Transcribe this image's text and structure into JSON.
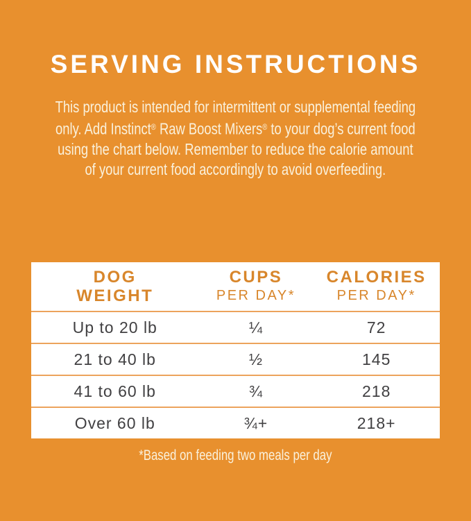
{
  "page": {
    "background_color": "#E8902E",
    "accent_color": "#D8862B",
    "table_text_color": "#414042",
    "cream_text_color": "#FAF1DC"
  },
  "title": "SERVING INSTRUCTIONS",
  "intro": {
    "line1": "This product is intended for intermittent or supplemental feeding",
    "line2a": "only. Add Instinct",
    "reg": "®",
    "line2b": " Raw Boost Mixers",
    "line2c": " to your dog’s current food",
    "line3": "using the chart below. Remember to reduce the calorie amount",
    "line4": "of your current food accordingly to avoid overfeeding."
  },
  "table": {
    "columns": [
      {
        "line1": "DOG",
        "line2": "WEIGHT"
      },
      {
        "line1": "CUPS",
        "line2": "PER DAY*"
      },
      {
        "line1": "CALORIES",
        "line2": "PER DAY*"
      }
    ],
    "rows": [
      {
        "weight": "Up to 20 lb",
        "cups": "¼",
        "calories": "72"
      },
      {
        "weight": "21 to 40 lb",
        "cups": "½",
        "calories": "145"
      },
      {
        "weight": "41 to 60 lb",
        "cups": "¾",
        "calories": "218"
      },
      {
        "weight": "Over 60 lb",
        "cups": "¾+",
        "calories": "218+"
      }
    ]
  },
  "footnote": "*Based on feeding two meals per day"
}
